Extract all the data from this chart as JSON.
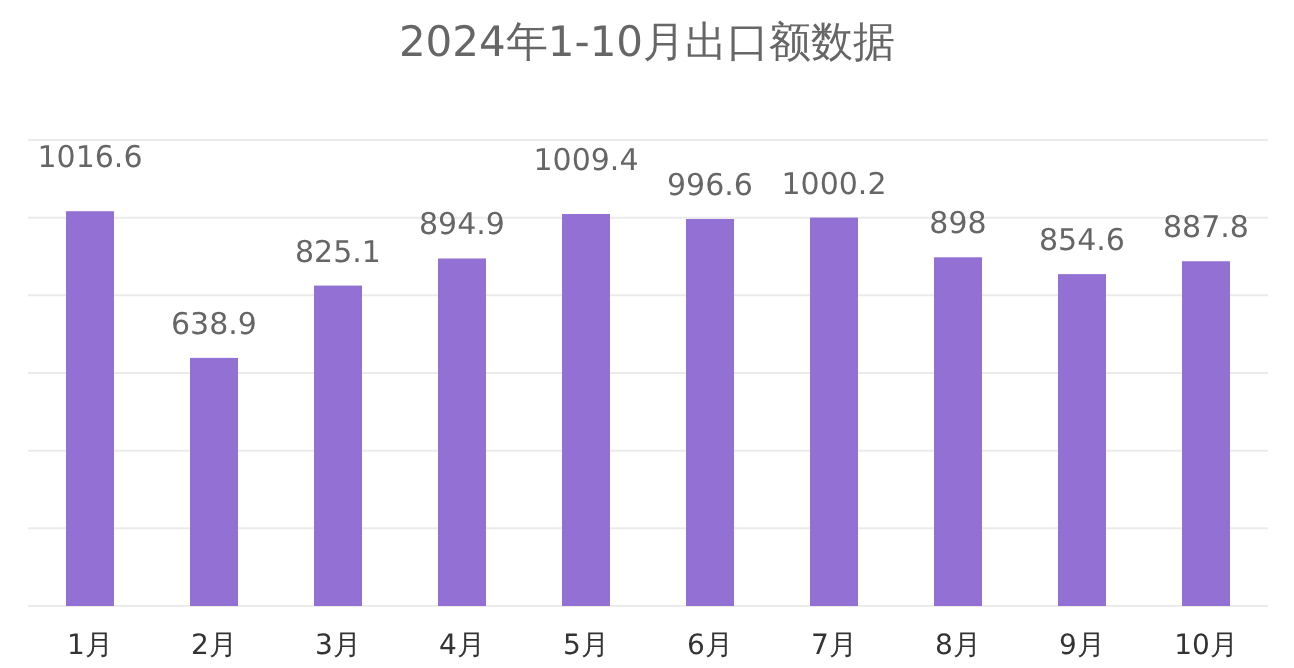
{
  "chart_data": {
    "type": "bar",
    "title": "2024年1-10月出口额数据",
    "categories": [
      "1月",
      "2月",
      "3月",
      "4月",
      "5月",
      "6月",
      "7月",
      "8月",
      "9月",
      "10月"
    ],
    "values": [
      1016.6,
      638.9,
      825.1,
      894.9,
      1009.4,
      996.6,
      1000.2,
      898,
      854.6,
      887.8
    ],
    "value_labels": [
      "1016.6",
      "638.9",
      "825.1",
      "894.9",
      "1009.4",
      "996.6",
      "1000.2",
      "898",
      "854.6",
      "887.8"
    ],
    "color": "#9370d4",
    "ylim": [
      0,
      1200
    ],
    "yticks": [
      {
        "value": 0,
        "label": null
      },
      {
        "value": 200,
        "label": null
      },
      {
        "value": 400,
        "label": null
      },
      {
        "value": 600,
        "label": null
      },
      {
        "value": 800,
        "label": null
      },
      {
        "value": 1000,
        "label": null
      },
      {
        "value": 1200,
        "label": null
      }
    ],
    "tick_labels": "x",
    "grid": "y"
  }
}
